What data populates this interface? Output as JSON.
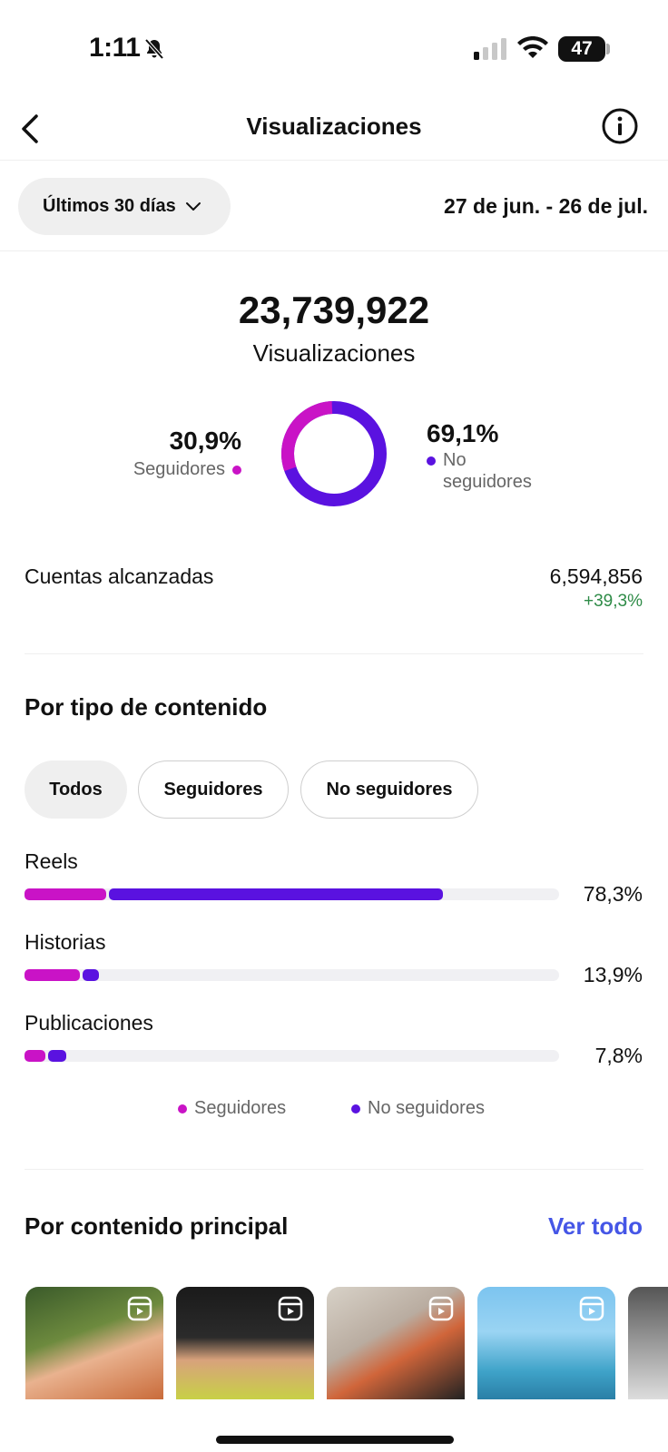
{
  "status_bar": {
    "time": "1:11",
    "battery": "47"
  },
  "header": {
    "title": "Visualizaciones"
  },
  "range": {
    "selector_label": "Últimos 30 días",
    "dates": "27 de jun. - 26 de jul."
  },
  "summary": {
    "total": "23,739,922",
    "total_label": "Visualizaciones",
    "followers_pct": "30,9%",
    "followers_label": "Seguidores",
    "non_followers_pct": "69,1%",
    "non_followers_label": "No seguidores",
    "followers_fraction": 0.309,
    "non_followers_fraction": 0.691
  },
  "reach": {
    "label": "Cuentas alcanzadas",
    "value": "6,594,856",
    "change": "+39,3%"
  },
  "content_type": {
    "title": "Por tipo de contenido",
    "filters": [
      "Todos",
      "Seguidores",
      "No seguidores"
    ],
    "active_filter": "Todos",
    "rows": [
      {
        "label": "Reels",
        "pct": "78,3%",
        "followers_fraction": 0.158,
        "non_followers_fraction": 0.625
      },
      {
        "label": "Historias",
        "pct": "13,9%",
        "followers_fraction": 0.108,
        "non_followers_fraction": 0.031
      },
      {
        "label": "Publicaciones",
        "pct": "7,8%",
        "followers_fraction": 0.044,
        "non_followers_fraction": 0.034
      }
    ],
    "legend": {
      "followers": "Seguidores",
      "non_followers": "No seguidores"
    }
  },
  "top_content": {
    "title": "Por contenido principal",
    "see_all": "Ver todo",
    "items": [
      "reel-thumbnail",
      "reel-thumbnail",
      "reel-thumbnail",
      "reel-thumbnail",
      "reel-thumbnail"
    ]
  },
  "colors": {
    "followers": "#c913c6",
    "non_followers": "#5a12e0",
    "positive": "#2e8b47",
    "link": "#4556e6"
  }
}
